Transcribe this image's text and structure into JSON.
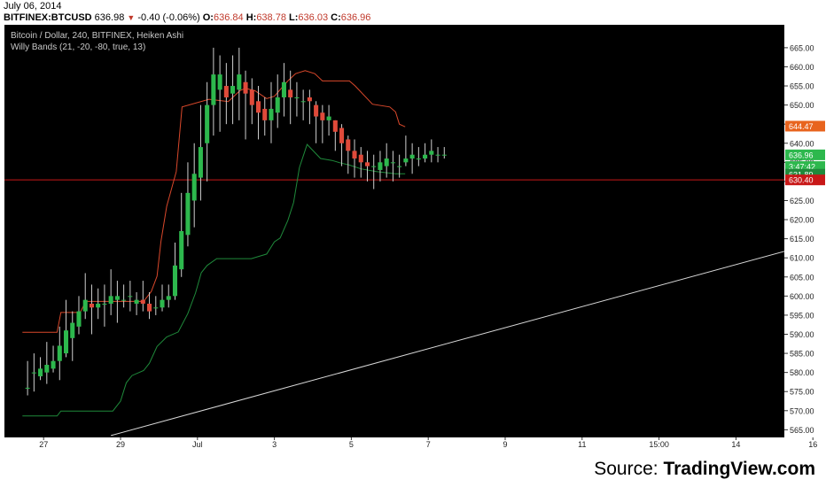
{
  "header": {
    "date": "July 06, 2014",
    "symbol": "BITFINEX:BTCUSD",
    "last": "636.98",
    "change": "-0.40 (-0.06%)",
    "o_label": "O:",
    "o_value": "636.84",
    "h_label": "H:",
    "h_value": "638.78",
    "l_label": "L:",
    "l_value": "636.03",
    "c_label": "C:",
    "c_value": "636.96"
  },
  "legend": {
    "line1": "Bitcoin / Dollar, 240, BITFINEX, Heiken Ashi",
    "line2": "Willy Bands (21, -20, -80, true, 13)"
  },
  "source": {
    "prefix": "Source: ",
    "brand": "TradingView.com"
  },
  "colors": {
    "up": "#2db84d",
    "down": "#e04a3a",
    "upper_band": "#d9482b",
    "lower_band": "#1f8a3b",
    "hline": "#c81818",
    "trend": "#d8d8d8"
  },
  "chart_data": {
    "type": "candlestick",
    "ylim": [
      563,
      671
    ],
    "y_ticks": [
      665,
      660,
      655,
      650,
      645,
      640,
      635,
      630,
      625,
      620,
      615,
      610,
      605,
      600,
      595,
      590,
      585,
      580,
      575,
      570,
      565
    ],
    "x_ticks": [
      {
        "label": "27",
        "x": 0.5
      },
      {
        "label": "29",
        "x": 2.5
      },
      {
        "label": "Jul",
        "x": 4.5
      },
      {
        "label": "3",
        "x": 6.5
      },
      {
        "label": "5",
        "x": 8.5
      },
      {
        "label": "7",
        "x": 10.5
      },
      {
        "label": "9",
        "x": 12.5
      },
      {
        "label": "11",
        "x": 14.5
      },
      {
        "label": "15:00",
        "x": 16.5
      },
      {
        "label": "14",
        "x": 18.5
      },
      {
        "label": "16",
        "x": 20.5
      }
    ],
    "price_tags": [
      {
        "value": "644.47",
        "price": 644.47,
        "color": "#e8641e"
      },
      {
        "value": "636.96",
        "price": 636.96,
        "color": "#2db84d"
      },
      {
        "value": "3:47:42",
        "price": 633.9,
        "color": "#2db84d"
      },
      {
        "value": "631.89",
        "price": 631.89,
        "color": "#1f8a3b"
      },
      {
        "value": "630.40",
        "price": 630.4,
        "color": "#c81818"
      }
    ],
    "horizontal_line": 630.4,
    "trend_line": [
      [
        2.25,
        563.5
      ],
      [
        20.3,
        613.2
      ]
    ],
    "candles": [
      [
        576,
        576,
        583,
        574
      ],
      [
        580,
        580,
        585,
        575
      ],
      [
        579,
        581,
        584,
        578
      ],
      [
        580,
        582,
        588,
        577
      ],
      [
        581,
        583,
        587,
        580
      ],
      [
        583,
        587,
        592,
        578
      ],
      [
        585,
        591,
        599,
        584
      ],
      [
        589,
        593,
        596,
        583
      ],
      [
        592,
        596,
        600,
        590
      ],
      [
        596,
        599,
        606,
        594
      ],
      [
        598,
        597,
        603,
        590
      ],
      [
        597,
        598,
        602,
        594
      ],
      [
        598,
        598,
        603,
        592
      ],
      [
        598,
        600,
        607,
        595
      ],
      [
        599,
        600,
        604,
        593
      ],
      [
        599,
        599,
        603,
        597
      ],
      [
        600,
        600,
        604,
        596
      ],
      [
        598,
        599,
        601,
        595
      ],
      [
        599,
        598,
        604,
        596
      ],
      [
        598,
        596,
        601,
        594
      ],
      [
        597,
        597,
        600,
        595
      ],
      [
        597,
        599,
        603,
        596
      ],
      [
        599,
        600,
        603,
        597
      ],
      [
        600,
        608,
        614,
        599
      ],
      [
        607,
        617,
        627,
        605
      ],
      [
        616,
        627,
        635,
        613
      ],
      [
        625,
        632,
        640,
        618
      ],
      [
        631,
        639,
        650,
        625
      ],
      [
        640,
        650,
        656,
        630
      ],
      [
        650,
        658,
        665,
        642
      ],
      [
        654,
        658,
        663,
        643
      ],
      [
        655,
        652,
        661,
        645
      ],
      [
        653,
        655,
        663,
        645
      ],
      [
        654,
        658,
        665,
        646
      ],
      [
        656,
        653,
        659,
        641
      ],
      [
        654,
        650,
        657,
        645
      ],
      [
        651,
        648,
        655,
        641
      ],
      [
        649,
        646,
        652,
        642
      ],
      [
        646,
        649,
        656,
        640
      ],
      [
        648,
        652,
        658,
        644
      ],
      [
        652,
        656,
        661,
        647
      ],
      [
        654,
        652,
        659,
        645
      ],
      [
        652,
        652,
        656,
        647
      ],
      [
        651,
        651,
        654,
        646
      ],
      [
        652,
        651,
        654,
        645
      ],
      [
        650,
        647,
        651,
        640
      ],
      [
        648,
        646,
        650,
        640
      ],
      [
        646,
        647,
        650,
        642
      ],
      [
        646,
        643,
        646,
        638
      ],
      [
        644,
        640,
        645,
        634
      ],
      [
        641,
        638,
        642,
        632
      ],
      [
        638,
        636,
        641,
        631
      ],
      [
        637,
        635,
        639,
        631
      ],
      [
        635,
        634,
        638,
        630
      ],
      [
        634,
        634,
        637,
        628
      ],
      [
        633,
        635,
        638,
        630
      ],
      [
        634,
        636,
        640,
        631
      ],
      [
        635,
        635,
        638,
        630
      ],
      [
        634,
        634,
        637,
        631
      ],
      [
        635,
        636,
        642,
        634
      ],
      [
        636,
        637,
        640,
        632
      ],
      [
        636,
        636,
        639,
        634
      ],
      [
        636,
        637,
        640,
        635
      ],
      [
        637,
        638,
        641,
        635
      ],
      [
        637,
        637,
        639,
        635
      ],
      [
        637,
        637,
        639,
        636
      ]
    ],
    "upper_band": [
      [
        -0.05,
        590.5
      ],
      [
        0.85,
        590.5
      ],
      [
        0.95,
        595.7
      ],
      [
        1.45,
        595.7
      ],
      [
        1.6,
        598.6
      ],
      [
        3.1,
        598.6
      ],
      [
        3.3,
        601.2
      ],
      [
        3.45,
        605.2
      ],
      [
        3.55,
        614.3
      ],
      [
        3.7,
        623.5
      ],
      [
        3.95,
        632.6
      ],
      [
        4.1,
        649.5
      ],
      [
        4.8,
        651.5
      ],
      [
        5.3,
        650.9
      ],
      [
        5.6,
        653.7
      ],
      [
        5.75,
        654.4
      ],
      [
        6.0,
        653.7
      ],
      [
        6.3,
        651.7
      ],
      [
        6.5,
        652.3
      ],
      [
        6.85,
        656.3
      ],
      [
        7.05,
        658.2
      ],
      [
        7.3,
        659.0
      ],
      [
        7.55,
        658.2
      ],
      [
        7.75,
        656.3
      ],
      [
        8.45,
        656.3
      ],
      [
        8.6,
        655.0
      ],
      [
        9.05,
        650.2
      ],
      [
        9.5,
        649.5
      ],
      [
        9.65,
        648.2
      ],
      [
        9.75,
        645.0
      ],
      [
        9.9,
        644.3
      ]
    ],
    "lower_band": [
      [
        -0.05,
        568.6
      ],
      [
        0.85,
        568.6
      ],
      [
        0.95,
        569.9
      ],
      [
        2.3,
        569.9
      ],
      [
        2.5,
        572.5
      ],
      [
        2.65,
        577.3
      ],
      [
        2.8,
        579.2
      ],
      [
        3.1,
        580.5
      ],
      [
        3.25,
        582.4
      ],
      [
        3.45,
        586.8
      ],
      [
        3.7,
        589.3
      ],
      [
        4.0,
        590.6
      ],
      [
        4.25,
        595.4
      ],
      [
        4.45,
        600.8
      ],
      [
        4.6,
        606.1
      ],
      [
        4.75,
        608.0
      ],
      [
        5.0,
        609.8
      ],
      [
        5.9,
        609.8
      ],
      [
        6.1,
        610.4
      ],
      [
        6.3,
        611.0
      ],
      [
        6.5,
        614.2
      ],
      [
        6.65,
        615.2
      ],
      [
        6.85,
        619.8
      ],
      [
        7.0,
        624.5
      ],
      [
        7.15,
        633.6
      ],
      [
        7.35,
        639.7
      ],
      [
        7.7,
        636.0
      ],
      [
        8.0,
        635.5
      ],
      [
        8.2,
        634.9
      ],
      [
        8.45,
        634.3
      ],
      [
        8.75,
        633.3
      ],
      [
        9.15,
        632.6
      ],
      [
        9.65,
        632.0
      ],
      [
        9.9,
        632.0
      ]
    ]
  }
}
